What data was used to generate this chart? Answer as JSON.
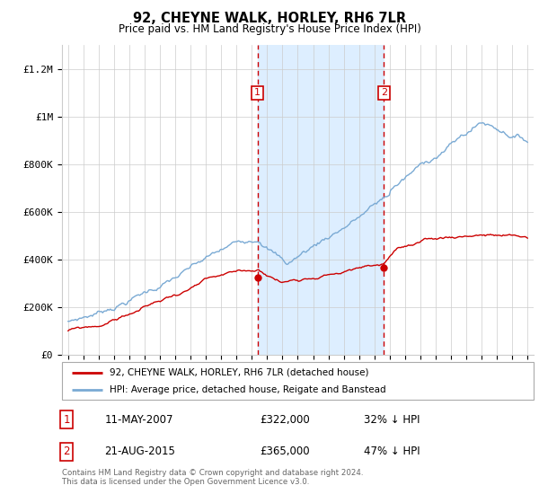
{
  "title": "92, CHEYNE WALK, HORLEY, RH6 7LR",
  "subtitle": "Price paid vs. HM Land Registry's House Price Index (HPI)",
  "year_start": 1995,
  "year_end": 2025,
  "ylim": [
    0,
    1300000
  ],
  "yticks": [
    0,
    200000,
    400000,
    600000,
    800000,
    1000000,
    1200000
  ],
  "ytick_labels": [
    "£0",
    "£200K",
    "£400K",
    "£600K",
    "£800K",
    "£1M",
    "£1.2M"
  ],
  "transaction1_date": 2007.37,
  "transaction1_price": 322000,
  "transaction1_label": "11-MAY-2007",
  "transaction1_pct": "32% ↓ HPI",
  "transaction2_date": 2015.63,
  "transaction2_price": 365000,
  "transaction2_label": "21-AUG-2015",
  "transaction2_pct": "47% ↓ HPI",
  "hpi_color": "#7aaad4",
  "price_color": "#cc0000",
  "background_color": "#ffffff",
  "plot_bg_color": "#ffffff",
  "shading_color": "#ddeeff",
  "legend_line1": "92, CHEYNE WALK, HORLEY, RH6 7LR (detached house)",
  "legend_line2": "HPI: Average price, detached house, Reigate and Banstead",
  "footnote": "Contains HM Land Registry data © Crown copyright and database right 2024.\nThis data is licensed under the Open Government Licence v3.0."
}
